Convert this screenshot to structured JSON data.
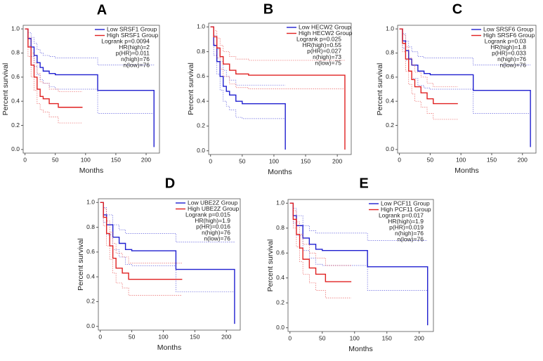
{
  "chart_data": [
    {
      "type": "step",
      "panel": "A",
      "xlabel": "Months",
      "ylabel": "Percent survival",
      "xlim": [
        -3,
        222
      ],
      "ylim": [
        -0.03,
        1.03
      ],
      "xticks": [
        0,
        50,
        100,
        150,
        200
      ],
      "yticks": [
        {
          "value": 0,
          "label": "0.0"
        },
        0.2,
        0.4,
        0.6,
        0.8,
        {
          "value": 1,
          "label": "1.0"
        }
      ],
      "annotations": [
        "Logrank p=0.0094",
        "HR(high)=2",
        "p(HR)=0.011",
        "n(high)=76",
        "n(low)=76"
      ],
      "series": [
        {
          "name": "Low SRSF1 Group",
          "color": "#1f1fd0",
          "x": [
            0,
            5,
            10,
            15,
            20,
            25,
            30,
            40,
            50,
            60,
            120,
            213
          ],
          "values": [
            1,
            0.92,
            0.85,
            0.78,
            0.72,
            0.68,
            0.65,
            0.63,
            0.62,
            0.62,
            0.49,
            0.02
          ],
          "ci_upper": [
            1,
            0.97,
            0.93,
            0.88,
            0.83,
            0.8,
            0.78,
            0.77,
            0.76,
            0.76,
            0.7,
            0.7
          ],
          "ci_lower": [
            1,
            0.86,
            0.77,
            0.69,
            0.62,
            0.58,
            0.55,
            0.52,
            0.5,
            0.5,
            0.3,
            0.3
          ]
        },
        {
          "name": "High SRSF1 Group",
          "color": "#e02020",
          "x": [
            0,
            5,
            10,
            15,
            20,
            25,
            30,
            40,
            55,
            95
          ],
          "values": [
            1,
            0.85,
            0.7,
            0.6,
            0.5,
            0.44,
            0.42,
            0.38,
            0.35,
            0.35
          ],
          "ci_upper": [
            1,
            0.93,
            0.8,
            0.72,
            0.63,
            0.56,
            0.55,
            0.5,
            0.48,
            0.48
          ],
          "ci_lower": [
            1,
            0.77,
            0.6,
            0.49,
            0.38,
            0.33,
            0.31,
            0.27,
            0.22,
            0.22
          ]
        }
      ]
    },
    {
      "type": "step",
      "panel": "B",
      "xlabel": "Months",
      "ylabel": "Percent survival",
      "xlim": [
        -3,
        222
      ],
      "ylim": [
        -0.03,
        1.03
      ],
      "xticks": [
        0,
        50,
        100,
        150,
        200
      ],
      "yticks": [
        {
          "value": 0,
          "label": "0.0"
        },
        0.2,
        0.4,
        0.6,
        0.8,
        {
          "value": 1,
          "label": "1.0"
        }
      ],
      "annotations": [
        "Logrank p=0.025",
        "HR(high)=0.55",
        "p(HR)=0.027",
        "n(high)=73",
        "n(low)=75"
      ],
      "series": [
        {
          "name": "Low HECW2 Group",
          "color": "#1f1fd0",
          "x": [
            0,
            5,
            10,
            15,
            20,
            25,
            30,
            40,
            50,
            118
          ],
          "values": [
            1,
            0.85,
            0.72,
            0.6,
            0.52,
            0.48,
            0.45,
            0.4,
            0.38,
            0.01
          ],
          "ci_upper": [
            1,
            0.93,
            0.82,
            0.72,
            0.65,
            0.6,
            0.57,
            0.53,
            0.53,
            0.53
          ],
          "ci_lower": [
            1,
            0.77,
            0.62,
            0.49,
            0.4,
            0.36,
            0.33,
            0.27,
            0.26,
            0.26
          ]
        },
        {
          "name": "High HECW2 Group",
          "color": "#e02020",
          "x": [
            0,
            5,
            10,
            15,
            20,
            30,
            40,
            60,
            212
          ],
          "values": [
            1,
            0.92,
            0.83,
            0.76,
            0.7,
            0.65,
            0.62,
            0.61,
            0.01
          ],
          "ci_upper": [
            1,
            0.97,
            0.91,
            0.85,
            0.8,
            0.76,
            0.74,
            0.73,
            0.73
          ],
          "ci_lower": [
            1,
            0.86,
            0.75,
            0.66,
            0.6,
            0.54,
            0.51,
            0.5,
            0.5
          ]
        }
      ]
    },
    {
      "type": "step",
      "panel": "C",
      "xlabel": "Months",
      "ylabel": "Percent survival",
      "xlim": [
        -3,
        222
      ],
      "ylim": [
        -0.03,
        1.03
      ],
      "xticks": [
        0,
        50,
        100,
        150,
        200
      ],
      "yticks": [
        {
          "value": 0,
          "label": "0.0"
        },
        0.2,
        0.4,
        0.6,
        0.8,
        {
          "value": 1,
          "label": "1.0"
        }
      ],
      "annotations": [
        "Logrank p=0.03",
        "HR(high)=1.8",
        "p(HR)=0.033",
        "n(high)=76",
        "n(low)=76"
      ],
      "series": [
        {
          "name": "Low SRSF6 Group",
          "color": "#1f1fd0",
          "x": [
            0,
            5,
            10,
            15,
            20,
            30,
            40,
            50,
            120,
            213
          ],
          "values": [
            1,
            0.9,
            0.82,
            0.75,
            0.7,
            0.65,
            0.63,
            0.62,
            0.49,
            0.02
          ],
          "ci_upper": [
            1,
            0.96,
            0.9,
            0.85,
            0.81,
            0.77,
            0.76,
            0.76,
            0.7,
            0.7
          ],
          "ci_lower": [
            1,
            0.84,
            0.74,
            0.65,
            0.59,
            0.53,
            0.51,
            0.5,
            0.3,
            0.3
          ]
        },
        {
          "name": "High SRSF6 Group",
          "color": "#e02020",
          "x": [
            0,
            5,
            10,
            15,
            20,
            25,
            35,
            45,
            55,
            95
          ],
          "values": [
            1,
            0.88,
            0.75,
            0.65,
            0.58,
            0.52,
            0.47,
            0.42,
            0.38,
            0.38
          ],
          "ci_upper": [
            1,
            0.95,
            0.85,
            0.76,
            0.7,
            0.64,
            0.6,
            0.55,
            0.52,
            0.52
          ],
          "ci_lower": [
            1,
            0.81,
            0.65,
            0.54,
            0.46,
            0.4,
            0.35,
            0.3,
            0.25,
            0.25
          ]
        }
      ]
    },
    {
      "type": "step",
      "panel": "D",
      "xlabel": "Months",
      "ylabel": "Percent survival",
      "xlim": [
        -3,
        222
      ],
      "ylim": [
        -0.03,
        1.03
      ],
      "xticks": [
        0,
        50,
        100,
        150,
        200
      ],
      "yticks": [
        {
          "value": 0,
          "label": "0.0"
        },
        0.2,
        0.4,
        0.6,
        0.8,
        {
          "value": 1,
          "label": "1.0"
        }
      ],
      "annotations": [
        "Logrank p=0.015",
        "HR(high)=1.9",
        "p(HR)=0.016",
        "n(high)=76",
        "n(low)=76"
      ],
      "series": [
        {
          "name": "Low UBE2Z Group",
          "color": "#1f1fd0",
          "x": [
            0,
            5,
            10,
            20,
            30,
            40,
            50,
            120,
            213
          ],
          "values": [
            1,
            0.9,
            0.82,
            0.72,
            0.67,
            0.62,
            0.61,
            0.46,
            0.02
          ],
          "ci_upper": [
            1,
            0.96,
            0.9,
            0.82,
            0.78,
            0.75,
            0.75,
            0.68,
            0.68
          ],
          "ci_lower": [
            1,
            0.84,
            0.74,
            0.62,
            0.56,
            0.5,
            0.49,
            0.28,
            0.28
          ]
        },
        {
          "name": "High UBE2Z Group",
          "color": "#e02020",
          "x": [
            0,
            5,
            10,
            15,
            20,
            25,
            35,
            45,
            130
          ],
          "values": [
            1,
            0.88,
            0.75,
            0.65,
            0.55,
            0.47,
            0.43,
            0.38,
            0.38
          ],
          "ci_upper": [
            1,
            0.95,
            0.85,
            0.76,
            0.67,
            0.59,
            0.56,
            0.51,
            0.51
          ],
          "ci_lower": [
            1,
            0.81,
            0.65,
            0.54,
            0.43,
            0.35,
            0.31,
            0.25,
            0.25
          ]
        }
      ]
    },
    {
      "type": "step",
      "panel": "E",
      "xlabel": "Months",
      "ylabel": "Percent survival",
      "xlim": [
        -3,
        222
      ],
      "ylim": [
        -0.03,
        1.03
      ],
      "xticks": [
        0,
        50,
        100,
        150,
        200
      ],
      "yticks": [
        {
          "value": 0,
          "label": "0.0"
        },
        0.2,
        0.4,
        0.6,
        0.8,
        {
          "value": 1,
          "label": "1.0"
        }
      ],
      "annotations": [
        "Logrank p=0.017",
        "HR(high)=1.9",
        "p(HR)=0.019",
        "n(high)=76",
        "n(low)=76"
      ],
      "series": [
        {
          "name": "Low PCF11 Group",
          "color": "#1f1fd0",
          "x": [
            0,
            5,
            10,
            20,
            30,
            40,
            50,
            120,
            213
          ],
          "values": [
            1,
            0.9,
            0.82,
            0.72,
            0.67,
            0.63,
            0.62,
            0.49,
            0.02
          ],
          "ci_upper": [
            1,
            0.96,
            0.9,
            0.82,
            0.78,
            0.76,
            0.76,
            0.7,
            0.7
          ],
          "ci_lower": [
            1,
            0.84,
            0.74,
            0.62,
            0.56,
            0.51,
            0.5,
            0.3,
            0.3
          ]
        },
        {
          "name": "High PCF11 Group",
          "color": "#e02020",
          "x": [
            0,
            5,
            10,
            15,
            20,
            30,
            40,
            55,
            95
          ],
          "values": [
            1,
            0.87,
            0.75,
            0.64,
            0.55,
            0.48,
            0.43,
            0.37,
            0.37
          ],
          "ci_upper": [
            1,
            0.94,
            0.85,
            0.75,
            0.67,
            0.6,
            0.56,
            0.5,
            0.5
          ],
          "ci_lower": [
            1,
            0.8,
            0.65,
            0.53,
            0.43,
            0.36,
            0.3,
            0.24,
            0.24
          ]
        }
      ]
    }
  ]
}
